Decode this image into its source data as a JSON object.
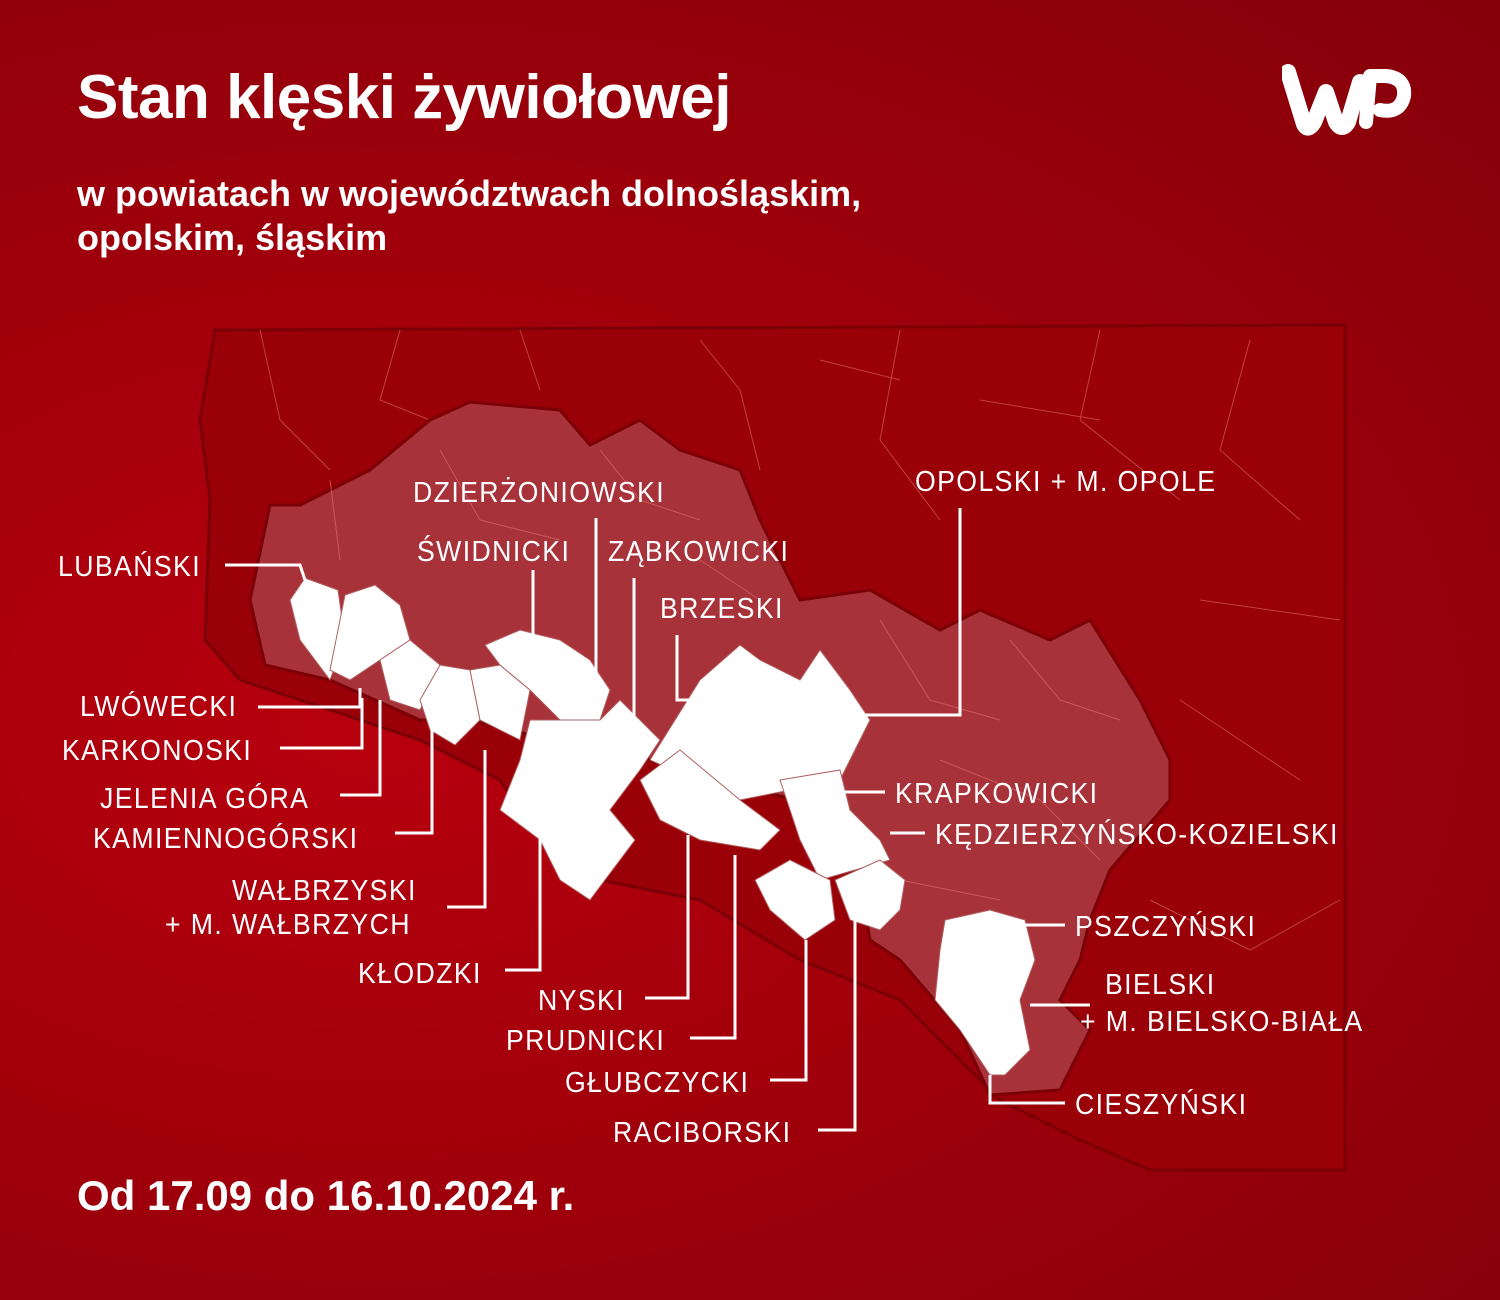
{
  "header": {
    "title": "Stan klęski żywiołowej",
    "subtitle_line1": "w powiatach w województwach dolnośląskim,",
    "subtitle_line2": "opolskim, śląskim",
    "logo_text": "WP"
  },
  "footer": {
    "date_range": "Od 17.09 do 16.10.2024 r."
  },
  "colors": {
    "background": "#a0000b",
    "outside_area": "#9a0008",
    "affected_voivodeships": "#a8323a",
    "affected_counties": "#ffffff"
  },
  "counties": [
    {
      "id": "lubanski",
      "label": "LUBAŃSKI"
    },
    {
      "id": "dzierzoniowski",
      "label": "DZIERŻONIOWSKI"
    },
    {
      "id": "swidnicki",
      "label": "ŚWIDNICKI"
    },
    {
      "id": "zabkowicki",
      "label": "ZĄBKOWICKI"
    },
    {
      "id": "brzeski",
      "label": "BRZESKI"
    },
    {
      "id": "opolski",
      "label": "OPOLSKI + M. OPOLE"
    },
    {
      "id": "lwowecki",
      "label": "LWÓWECKI"
    },
    {
      "id": "karkonoski",
      "label": "KARKONOSKI"
    },
    {
      "id": "jelenia",
      "label": "JELENIA GÓRA"
    },
    {
      "id": "kamiennogorski",
      "label": "KAMIENNOGÓRSKI"
    },
    {
      "id": "walbrzyski",
      "label": "WAŁBRZYSKI",
      "label2": "+ M. WAŁBRZYCH"
    },
    {
      "id": "klodzki",
      "label": "KŁODZKI"
    },
    {
      "id": "nyski",
      "label": "NYSKI"
    },
    {
      "id": "prudnicki",
      "label": "PRUDNICKI"
    },
    {
      "id": "glubczycki",
      "label": "GŁUBCZYCKI"
    },
    {
      "id": "raciborski",
      "label": "RACIBORSKI"
    },
    {
      "id": "krapkowicki",
      "label": "KRAPKOWICKI"
    },
    {
      "id": "kedzierzynsko",
      "label": "KĘDZIERZYŃSKO-KOZIELSKI"
    },
    {
      "id": "pszczynski",
      "label": "PSZCZYŃSKI"
    },
    {
      "id": "bielski",
      "label": "BIELSKI",
      "label2": "+ M. BIELSKO-BIAŁA"
    },
    {
      "id": "cieszynski",
      "label": "CIESZYŃSKI"
    }
  ]
}
